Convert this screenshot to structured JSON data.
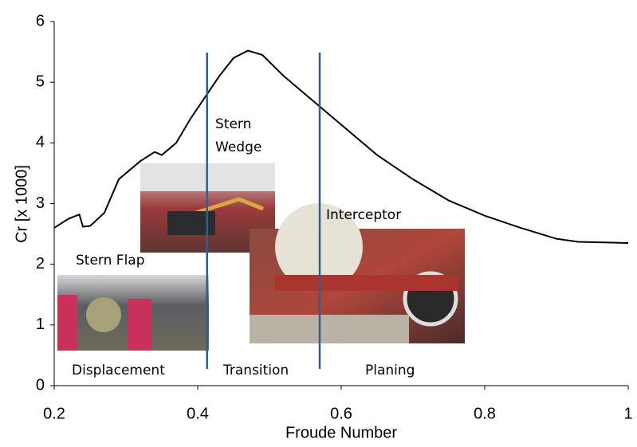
{
  "chart_data": {
    "type": "line",
    "xlabel": "Froude Number",
    "ylabel": "Cr [x 1000]",
    "x": [
      0.2,
      0.22,
      0.235,
      0.24,
      0.25,
      0.27,
      0.29,
      0.32,
      0.34,
      0.35,
      0.37,
      0.39,
      0.41,
      0.43,
      0.45,
      0.47,
      0.49,
      0.52,
      0.55,
      0.6,
      0.65,
      0.7,
      0.75,
      0.8,
      0.85,
      0.9,
      0.93,
      1.0
    ],
    "values": [
      2.6,
      2.75,
      2.82,
      2.62,
      2.63,
      2.85,
      3.4,
      3.7,
      3.85,
      3.8,
      4.0,
      4.4,
      4.75,
      5.1,
      5.4,
      5.52,
      5.45,
      5.1,
      4.8,
      4.3,
      3.8,
      3.4,
      3.05,
      2.8,
      2.6,
      2.42,
      2.37,
      2.35
    ],
    "color": "#000000",
    "xlim": [
      0.2,
      1
    ],
    "xticks": [
      0.2,
      0.4,
      0.6,
      0.8,
      1
    ],
    "ylim": [
      0,
      6
    ],
    "yticks": [
      0,
      1,
      2,
      3,
      4,
      5,
      6
    ],
    "region_boundaries": [
      0.413,
      0.57
    ],
    "boundary_color": "#2f5f8a",
    "annotations": {
      "stern_flap": "Stern Flap",
      "stern_wedge": [
        "Stern",
        "Wedge"
      ],
      "interceptor": "Interceptor",
      "displacement": "Displacement",
      "transition": "Transition",
      "planing": "Planing"
    }
  }
}
